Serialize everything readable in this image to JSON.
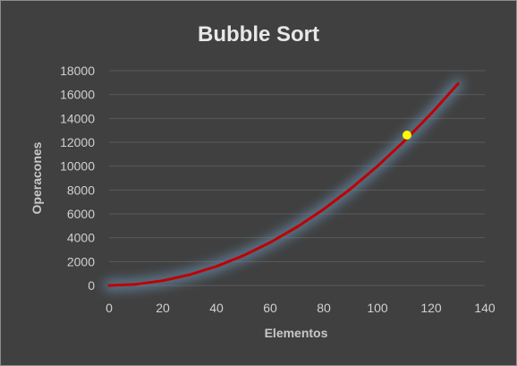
{
  "chart_data": {
    "type": "line",
    "title": "Bubble Sort",
    "xlabel": "Elementos",
    "ylabel": "Operacones",
    "xlim": [
      0,
      140
    ],
    "ylim": [
      0,
      18000
    ],
    "x_ticks": [
      0,
      20,
      40,
      60,
      80,
      100,
      120,
      140
    ],
    "y_ticks": [
      0,
      2000,
      4000,
      6000,
      8000,
      10000,
      12000,
      14000,
      16000,
      18000
    ],
    "grid": "horizontal",
    "legend": "none",
    "series": [
      {
        "color": "#c00000",
        "x": [
          0,
          10,
          20,
          30,
          40,
          50,
          60,
          70,
          80,
          90,
          100,
          110,
          120,
          130
        ],
        "y": [
          0,
          100,
          400,
          900,
          1600,
          2500,
          3600,
          4900,
          6400,
          8100,
          10000,
          12100,
          14400,
          16900
        ]
      }
    ],
    "highlight_point": {
      "x": 111,
      "y": 12600,
      "color": "#ffff00"
    }
  }
}
